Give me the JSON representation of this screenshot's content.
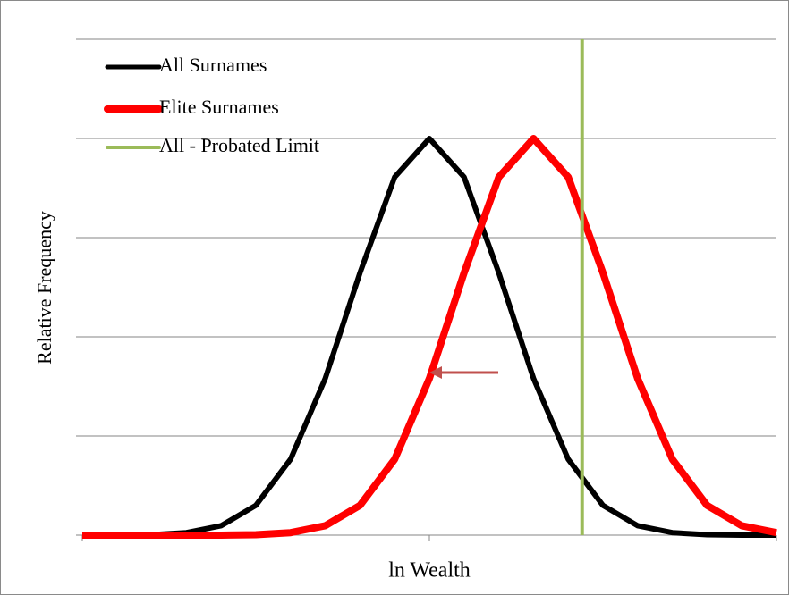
{
  "chart_data": {
    "type": "line",
    "xlabel": "ln Wealth",
    "ylabel": "Relative Frequency",
    "x": [
      0,
      0.5,
      1,
      1.5,
      2,
      2.5,
      3,
      3.5,
      4,
      4.5,
      5,
      5.5,
      6,
      6.5,
      7,
      7.5,
      8,
      8.5,
      9,
      9.5,
      10
    ],
    "series": [
      {
        "name": "All Surnames",
        "color": "#000000",
        "values": [
          0,
          0,
          0.001,
          0.005,
          0.019,
          0.06,
          0.153,
          0.316,
          0.529,
          0.722,
          0.8,
          0.722,
          0.529,
          0.316,
          0.153,
          0.06,
          0.019,
          0.005,
          0.001,
          0,
          0
        ]
      },
      {
        "name": "Elite Surnames",
        "color": "#ff0000",
        "values": [
          0,
          0,
          0,
          0,
          0,
          0.001,
          0.005,
          0.019,
          0.06,
          0.153,
          0.316,
          0.529,
          0.722,
          0.8,
          0.722,
          0.529,
          0.316,
          0.153,
          0.06,
          0.019,
          0.005
        ]
      }
    ],
    "vline": {
      "name": "All - Probated Limit",
      "color": "#9bbb59",
      "x": 7.2
    },
    "xlim": [
      0,
      10
    ],
    "xticks": [
      0,
      5,
      10
    ],
    "ylim": [
      0,
      1
    ],
    "yticks": [
      0,
      0.2,
      0.4,
      0.6,
      0.8,
      1
    ],
    "grid": true,
    "legend": "top-left"
  }
}
